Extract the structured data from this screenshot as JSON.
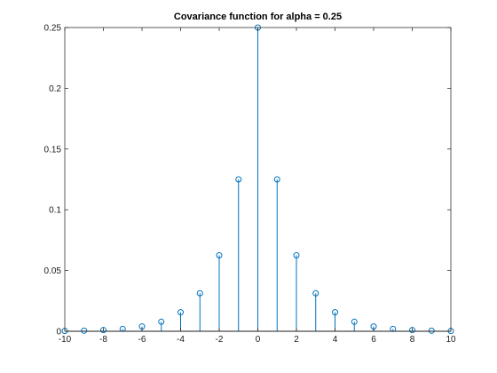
{
  "chart_data": {
    "type": "stem",
    "title": "Covariance function for alpha = 0.25",
    "xlabel": "",
    "ylabel": "",
    "xlim": [
      -10,
      10
    ],
    "ylim": [
      0,
      0.25
    ],
    "xticks": [
      -10,
      -8,
      -6,
      -4,
      -2,
      0,
      2,
      4,
      6,
      8,
      10
    ],
    "xtick_labels": [
      "-10",
      "-8",
      "-6",
      "-4",
      "-2",
      "0",
      "2",
      "4",
      "6",
      "8",
      "10"
    ],
    "yticks": [
      0,
      0.05,
      0.1,
      0.15,
      0.2,
      0.25
    ],
    "ytick_labels": [
      "0",
      "0.05",
      "0.1",
      "0.15",
      "0.2",
      "0.25"
    ],
    "grid": false,
    "marker": "circle-open",
    "color": "#0072BD",
    "x": [
      -10,
      -9,
      -8,
      -7,
      -6,
      -5,
      -4,
      -3,
      -2,
      -1,
      0,
      1,
      2,
      3,
      4,
      5,
      6,
      7,
      8,
      9,
      10
    ],
    "values": [
      0.000244,
      0.000488,
      0.000977,
      0.001953,
      0.003906,
      0.007813,
      0.015625,
      0.03125,
      0.0625,
      0.125,
      0.25,
      0.125,
      0.0625,
      0.03125,
      0.015625,
      0.007813,
      0.003906,
      0.001953,
      0.000977,
      0.000488,
      0.000244
    ]
  }
}
